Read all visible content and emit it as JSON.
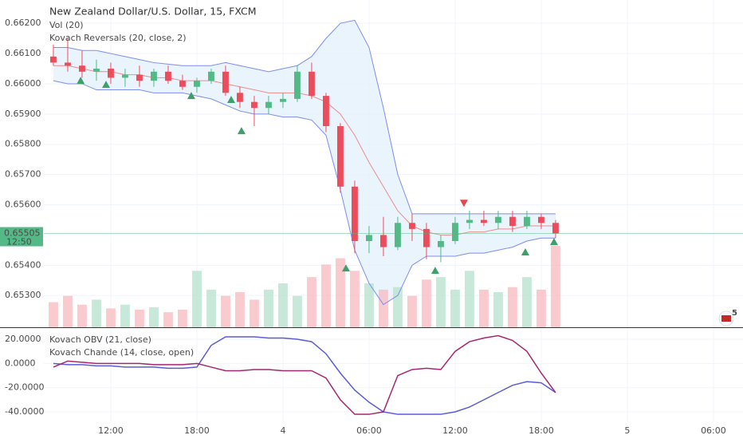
{
  "chart_data": [
    {
      "type": "candlestick",
      "title": "New Zealand Dollar/U.S. Dollar, 15, FXCM",
      "indicators": [
        "Vol (20)",
        "Kovach Reversals (20, close, 2)"
      ],
      "x": [
        8,
        9,
        10,
        11,
        12,
        13,
        14,
        15,
        16,
        17,
        18,
        19,
        20,
        21,
        22,
        23,
        24,
        25,
        26,
        27,
        28,
        29,
        30,
        31,
        32,
        33,
        34,
        35,
        36,
        37,
        38,
        39,
        40,
        41,
        42,
        43
      ],
      "open": [
        0.6609,
        0.6607,
        0.6606,
        0.6604,
        0.6605,
        0.6602,
        0.6603,
        0.6601,
        0.6604,
        0.6601,
        0.6599,
        0.6601,
        0.6604,
        0.6597,
        0.6594,
        0.6592,
        0.6594,
        0.6595,
        0.6604,
        0.6596,
        0.6586,
        0.6566,
        0.6548,
        0.655,
        0.6546,
        0.6554,
        0.6552,
        0.6546,
        0.6548,
        0.6554,
        0.6555,
        0.6554,
        0.6556,
        0.6553,
        0.6556,
        0.6554
      ],
      "high": [
        0.6613,
        0.6615,
        0.6611,
        0.6608,
        0.6607,
        0.6605,
        0.6606,
        0.6605,
        0.6606,
        0.6603,
        0.6602,
        0.6605,
        0.6606,
        0.6599,
        0.6596,
        0.6596,
        0.6597,
        0.6606,
        0.6607,
        0.6597,
        0.6587,
        0.6568,
        0.6553,
        0.6556,
        0.6556,
        0.6557,
        0.6554,
        0.655,
        0.6556,
        0.6558,
        0.6558,
        0.6558,
        0.6558,
        0.6558,
        0.6557,
        0.6555
      ],
      "low": [
        0.6606,
        0.6604,
        0.6602,
        0.6601,
        0.66,
        0.6599,
        0.6599,
        0.6599,
        0.66,
        0.6598,
        0.6597,
        0.66,
        0.6596,
        0.6592,
        0.6586,
        0.659,
        0.6592,
        0.6594,
        0.6595,
        0.6584,
        0.6564,
        0.6544,
        0.6544,
        0.6543,
        0.6545,
        0.6548,
        0.6542,
        0.6541,
        0.6547,
        0.6552,
        0.6553,
        0.6552,
        0.6551,
        0.6552,
        0.6552,
        0.6549
      ],
      "close": [
        0.6607,
        0.6606,
        0.6604,
        0.6605,
        0.6602,
        0.6603,
        0.6601,
        0.6604,
        0.6601,
        0.6599,
        0.6601,
        0.6604,
        0.6597,
        0.6594,
        0.6592,
        0.6594,
        0.6595,
        0.6604,
        0.6596,
        0.6586,
        0.6566,
        0.6548,
        0.655,
        0.6546,
        0.6554,
        0.6552,
        0.6546,
        0.6548,
        0.6554,
        0.6555,
        0.6554,
        0.6556,
        0.6553,
        0.6556,
        0.6554,
        0.65505
      ],
      "up_color": "#53b987",
      "down_color": "#eb4d5c",
      "series": [
        {
          "color": "#7e8cf0",
          "values": [
            0.6612,
            0.6612,
            0.6611,
            0.6611,
            0.661,
            0.6609,
            0.6608,
            0.6607,
            0.66065,
            0.6606,
            0.6606,
            0.6606,
            0.6607,
            0.6606,
            0.6605,
            0.6604,
            0.6605,
            0.6606,
            0.6609,
            0.6615,
            0.662,
            0.6621,
            0.6612,
            0.6592,
            0.657,
            0.6557,
            0.6557,
            0.6557,
            0.6557,
            0.6557,
            0.6557,
            0.6557,
            0.6557,
            0.6557,
            0.6557,
            0.6557
          ]
        },
        {
          "color": "#ef8a8a",
          "values": [
            0.6606,
            0.6606,
            0.6605,
            0.6604,
            0.6604,
            0.6603,
            0.6603,
            0.6602,
            0.6602,
            0.6601,
            0.6601,
            0.6601,
            0.66,
            0.6599,
            0.6598,
            0.6597,
            0.6597,
            0.6597,
            0.6596,
            0.6594,
            0.659,
            0.6583,
            0.6574,
            0.6566,
            0.6558,
            0.6553,
            0.6551,
            0.655,
            0.655,
            0.6551,
            0.6551,
            0.6552,
            0.6552,
            0.6553,
            0.6553,
            0.6553
          ]
        },
        {
          "color": "#7e8cf0",
          "values": [
            0.6601,
            0.66,
            0.66,
            0.6598,
            0.6598,
            0.6598,
            0.6598,
            0.6597,
            0.6597,
            0.6597,
            0.6596,
            0.6595,
            0.6593,
            0.6591,
            0.659,
            0.659,
            0.6589,
            0.6589,
            0.6588,
            0.6583,
            0.6565,
            0.6545,
            0.6534,
            0.6527,
            0.653,
            0.654,
            0.6543,
            0.6543,
            0.6543,
            0.6544,
            0.6544,
            0.6545,
            0.6546,
            0.6548,
            0.6549,
            0.6549
          ]
        }
      ],
      "band_fill": "#e3f1fc",
      "volume": {
        "values": [
          20,
          25,
          18,
          22,
          15,
          18,
          14,
          16,
          12,
          14,
          45,
          30,
          25,
          28,
          22,
          30,
          35,
          25,
          40,
          50,
          55,
          45,
          35,
          30,
          32,
          25,
          38,
          40,
          30,
          45,
          30,
          28,
          32,
          40,
          30,
          65
        ],
        "ylim": [
          0,
          70
        ],
        "up_color": "#b5e2cc",
        "down_color": "#f7b9bf"
      },
      "signals": {
        "up": {
          "x": [
            9.9,
            11.67,
            17.61,
            20.39,
            21.11,
            28.39,
            34.61,
            40.89,
            42.89
          ],
          "y": [
            0.6601,
            0.65997,
            0.6596,
            0.65947,
            0.65844,
            0.6539,
            0.65382,
            0.65443,
            0.65477
          ],
          "color": "#3f9f6a"
        },
        "down": {
          "x": [
            36.61
          ],
          "y": [
            0.65606
          ],
          "color": "#e0474f"
        }
      },
      "last_price": {
        "value": 0.65505,
        "label": "0.65505",
        "time": "12:50",
        "color": "#53b987"
      },
      "badge": "5",
      "ylim": [
        0.65195,
        0.66277
      ],
      "yticks": [
        {
          "value": 0.662,
          "label": "0.66200"
        },
        {
          "value": 0.661,
          "label": "0.66100"
        },
        {
          "value": 0.66,
          "label": "0.66000"
        },
        {
          "value": 0.659,
          "label": "0.65900"
        },
        {
          "value": 0.658,
          "label": "0.65800"
        },
        {
          "value": 0.657,
          "label": "0.65700"
        },
        {
          "value": 0.656,
          "label": "0.65600"
        },
        {
          "value": 0.654,
          "label": "0.65400"
        },
        {
          "value": 0.653,
          "label": "0.65300"
        }
      ],
      "xlim": [
        4.28,
        56.06
      ],
      "xticks": [
        {
          "value": 12,
          "label": "12:00"
        },
        {
          "value": 18,
          "label": "18:00"
        },
        {
          "value": 24,
          "label": "4"
        },
        {
          "value": 30,
          "label": "06:00"
        },
        {
          "value": 36,
          "label": "12:00"
        },
        {
          "value": 42,
          "label": "18:00"
        },
        {
          "value": 48,
          "label": "5"
        },
        {
          "value": 54,
          "label": "06:00"
        }
      ],
      "grid": true
    },
    {
      "type": "line",
      "series": [
        {
          "name": "Kovach OBV (21, close)",
          "color": "#5b5bd6",
          "values": [
            0,
            -1,
            -1,
            -2,
            -2,
            -3,
            -3,
            -3,
            -4,
            -4,
            -3,
            15,
            22,
            22,
            22,
            21,
            21,
            20,
            18,
            8,
            -8,
            -22,
            -32,
            -40,
            -42,
            -42,
            -42,
            -42,
            -40,
            -36,
            -30,
            -24,
            -18,
            -15,
            -16,
            -24
          ]
        },
        {
          "name": "Kovach Chande (14, close, open)",
          "color": "#a3286f",
          "values": [
            -3,
            2,
            1,
            0,
            0,
            0,
            0,
            -1,
            -1,
            -1,
            0,
            -3,
            -6,
            -6,
            -5,
            -5,
            -6,
            -6,
            -6,
            -12,
            -30,
            -42,
            -42,
            -40,
            -10,
            -5,
            -4,
            -5,
            10,
            18,
            21,
            23,
            19,
            10,
            -8,
            -24
          ]
        }
      ],
      "ylim": [
        -47.9,
        28.6
      ],
      "yticks": [
        {
          "value": 20,
          "label": "20.0000"
        },
        {
          "value": 0,
          "label": "0.0000"
        },
        {
          "value": -20,
          "label": "-20.0000"
        },
        {
          "value": -40,
          "label": "-40.0000"
        }
      ]
    }
  ]
}
